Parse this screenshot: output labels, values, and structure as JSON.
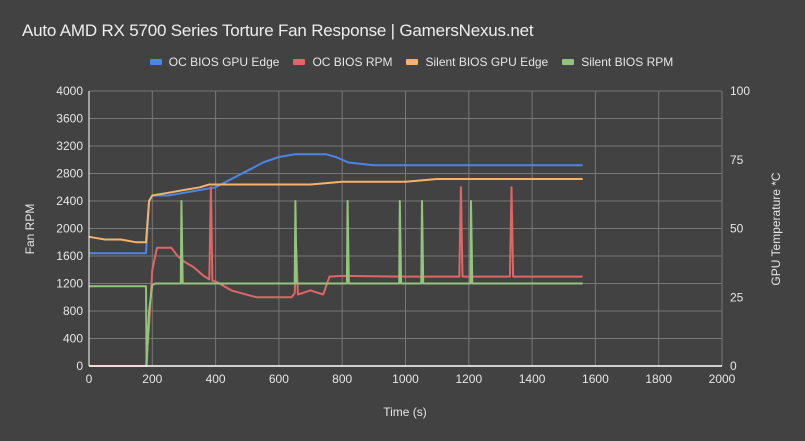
{
  "chart": {
    "title": "Auto AMD RX 5700 Series Torture Fan Response | GamersNexus.net",
    "legend": [
      {
        "label": "OC BIOS GPU Edge",
        "color": "#4a86e8"
      },
      {
        "label": "OC BIOS RPM",
        "color": "#e06666"
      },
      {
        "label": "Silent BIOS GPU Edge",
        "color": "#f6b26b"
      },
      {
        "label": "Silent BIOS RPM",
        "color": "#93c47d"
      }
    ],
    "xlabel": "Time (s)",
    "ylabel_left": "Fan RPM",
    "ylabel_right": "GPU Temperature *C"
  },
  "chart_data": {
    "type": "line",
    "title": "Auto AMD RX 5700 Series Torture Fan Response | GamersNexus.net",
    "xlabel": "Time (s)",
    "ylabel": "Fan RPM",
    "ylabel_secondary": "GPU Temperature *C",
    "xlim": [
      0,
      2000
    ],
    "ylim": [
      0,
      4000
    ],
    "ylim_secondary": [
      0,
      100
    ],
    "x_ticks": [
      0,
      200,
      400,
      600,
      800,
      1000,
      1200,
      1400,
      1600,
      1800,
      2000
    ],
    "y_ticks": [
      0,
      400,
      800,
      1200,
      1600,
      2000,
      2400,
      2800,
      3200,
      3600,
      4000
    ],
    "y_ticks_secondary": [
      0,
      25,
      50,
      75,
      100
    ],
    "grid": true,
    "legend_position": "top",
    "series": [
      {
        "name": "OC BIOS GPU Edge",
        "axis": "secondary",
        "color": "#4a86e8",
        "x": [
          0,
          50,
          100,
          150,
          180,
          190,
          200,
          250,
          300,
          350,
          400,
          450,
          500,
          550,
          600,
          650,
          700,
          750,
          780,
          820,
          900,
          1000,
          1100,
          1200,
          1300,
          1400,
          1500,
          1560
        ],
        "values": [
          41,
          41,
          41,
          41,
          41,
          60,
          62,
          62,
          63,
          64,
          65,
          68,
          71,
          74,
          76,
          77,
          77,
          77,
          76,
          74,
          73,
          73,
          73,
          73,
          73,
          73,
          73,
          73
        ]
      },
      {
        "name": "OC BIOS RPM",
        "axis": "primary",
        "color": "#e06666",
        "x": [
          0,
          180,
          190,
          200,
          215,
          260,
          280,
          300,
          330,
          360,
          380,
          385,
          390,
          400,
          450,
          480,
          530,
          600,
          640,
          650,
          655,
          660,
          700,
          740,
          760,
          800,
          1000,
          1170,
          1175,
          1180,
          1330,
          1335,
          1340,
          1560
        ],
        "values": [
          0,
          0,
          600,
          1400,
          1720,
          1720,
          1600,
          1520,
          1440,
          1320,
          1260,
          2600,
          1240,
          1230,
          1100,
          1060,
          1000,
          1000,
          1000,
          1060,
          1700,
          1040,
          1100,
          1040,
          1300,
          1310,
          1300,
          1300,
          2600,
          1300,
          1300,
          2600,
          1300,
          1300
        ]
      },
      {
        "name": "Silent BIOS GPU Edge",
        "axis": "secondary",
        "color": "#f6b26b",
        "x": [
          0,
          50,
          100,
          150,
          180,
          190,
          200,
          250,
          300,
          350,
          380,
          400,
          500,
          600,
          700,
          800,
          900,
          1000,
          1100,
          1200,
          1300,
          1400,
          1500,
          1560
        ],
        "values": [
          47,
          46,
          46,
          45,
          45,
          60,
          62,
          63,
          64,
          65,
          66,
          66,
          66,
          66,
          66,
          67,
          67,
          67,
          68,
          68,
          68,
          68,
          68,
          68
        ]
      },
      {
        "name": "Silent BIOS RPM",
        "axis": "primary",
        "color": "#93c47d",
        "x": [
          0,
          180,
          182,
          190,
          200,
          210,
          290,
          292,
          296,
          650,
          652,
          656,
          815,
          817,
          821,
          980,
          982,
          986,
          1050,
          1052,
          1056,
          1205,
          1207,
          1211,
          1560
        ],
        "values": [
          1160,
          1160,
          0,
          800,
          1180,
          1200,
          1200,
          2400,
          1200,
          1200,
          2400,
          1200,
          1200,
          2400,
          1200,
          1200,
          2400,
          1200,
          1200,
          2400,
          1200,
          1200,
          2400,
          1200,
          1200
        ]
      }
    ]
  }
}
